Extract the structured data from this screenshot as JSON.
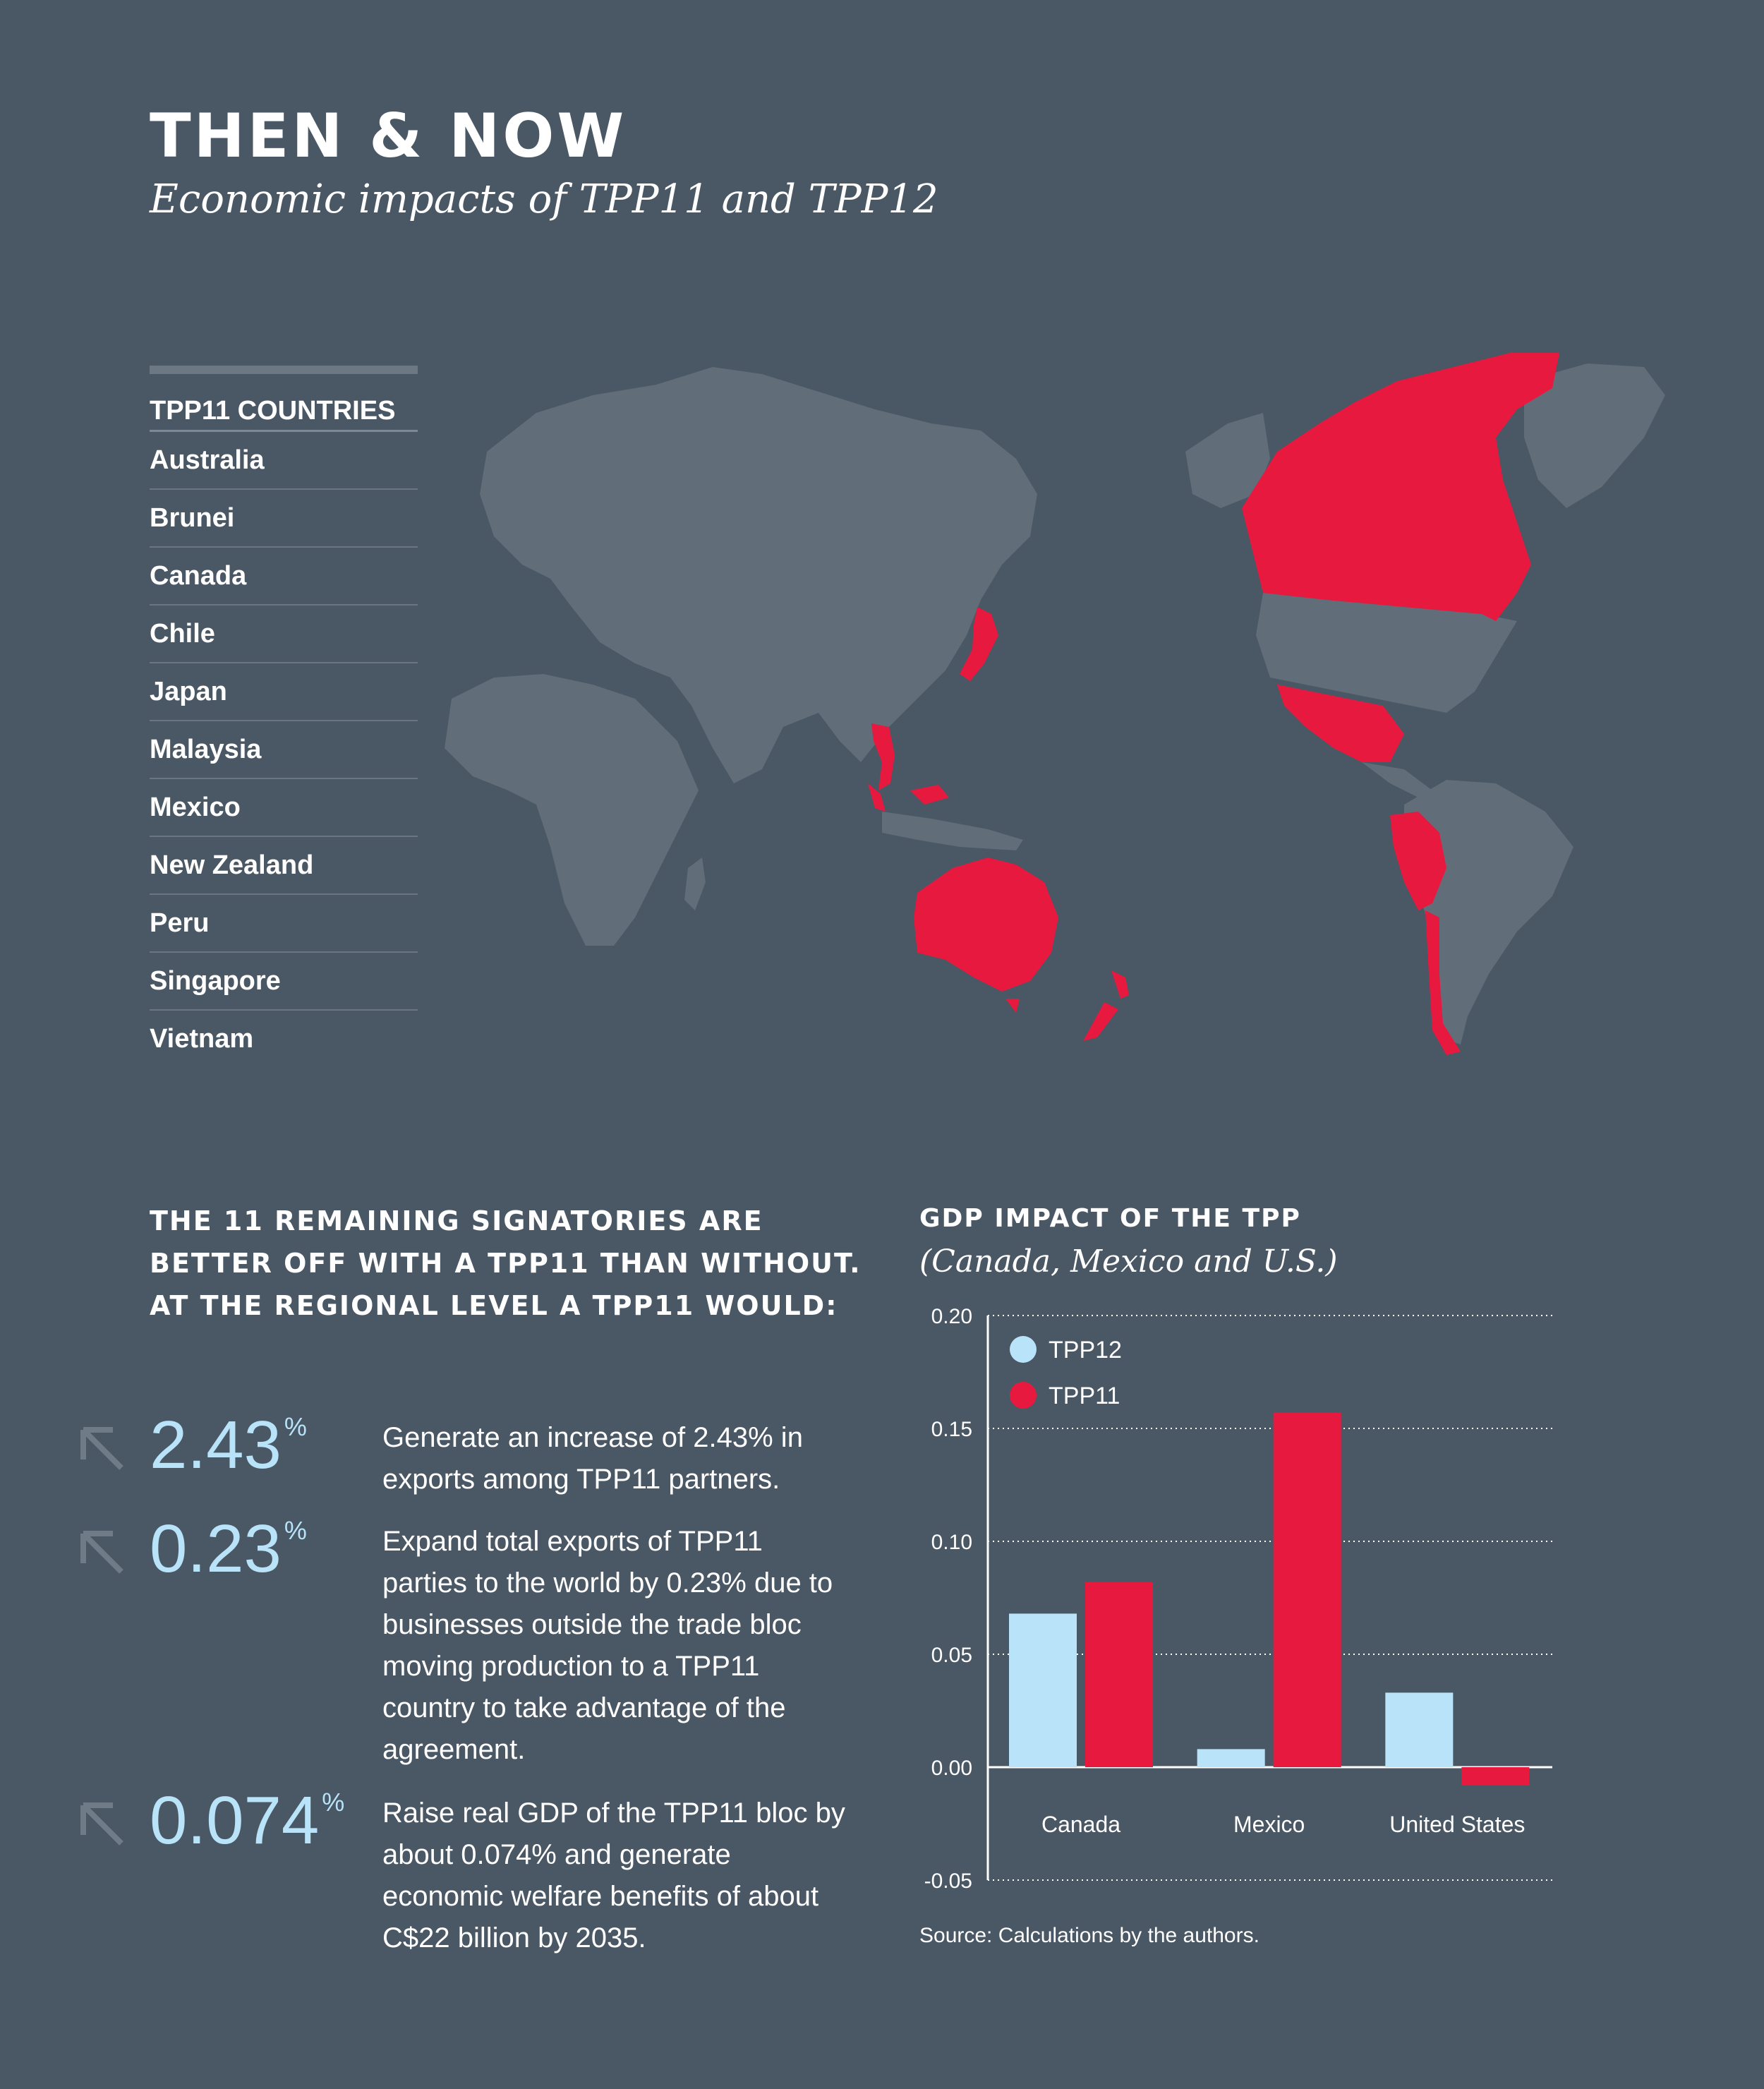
{
  "header": {
    "title": "THEN & NOW",
    "subtitle": "Economic impacts of TPP11 and TPP12"
  },
  "countries": {
    "title": "TPP11 COUNTRIES",
    "items": [
      "Australia",
      "Brunei",
      "Canada",
      "Chile",
      "Japan",
      "Malaysia",
      "Mexico",
      "New Zealand",
      "Peru",
      "Singapore",
      "Vietnam"
    ]
  },
  "map": {
    "highlight_color": "#e8193f",
    "land_color": "#616d79"
  },
  "stats": {
    "heading": "THE 11 REMAINING SIGNATORIES ARE BETTER OFF WITH A TPP11 THAN WITHOUT. AT THE REGIONAL LEVEL A TPP11 WOULD:",
    "items": [
      {
        "value": "2.43",
        "unit": "%",
        "icon": "arrow-up-left-icon",
        "text": "Generate an increase of 2.43% in exports among TPP11 partners."
      },
      {
        "value": "0.23",
        "unit": "%",
        "icon": "arrow-up-left-icon",
        "text": "Expand total exports of TPP11 parties to the world by 0.23% due to businesses outside the trade bloc moving production to a TPP11 country to take advantage of the agreement."
      },
      {
        "value": "0.074",
        "unit": "%",
        "icon": "arrow-up-left-icon",
        "text": "Raise real GDP of the TPP11 bloc by about 0.074% and generate economic welfare benefits of about C$22 billion by 2035."
      }
    ]
  },
  "chart_data": {
    "type": "bar",
    "title": "GDP IMPACT OF THE TPP",
    "subtitle": "(Canada, Mexico and U.S.)",
    "categories": [
      "Canada",
      "Mexico",
      "United States"
    ],
    "series": [
      {
        "name": "TPP12",
        "color": "#b8e3f8",
        "values": [
          0.068,
          0.008,
          0.033
        ]
      },
      {
        "name": "TPP11",
        "color": "#e8193f",
        "values": [
          0.082,
          0.157,
          -0.008
        ]
      }
    ],
    "ylim": [
      -0.05,
      0.2
    ],
    "yticks": [
      "0.20",
      "0.15",
      "0.10",
      "0.05",
      "0.00",
      "-0.05"
    ],
    "grid": true,
    "legend": "top-left",
    "source": "Source: Calculations by the authors."
  }
}
